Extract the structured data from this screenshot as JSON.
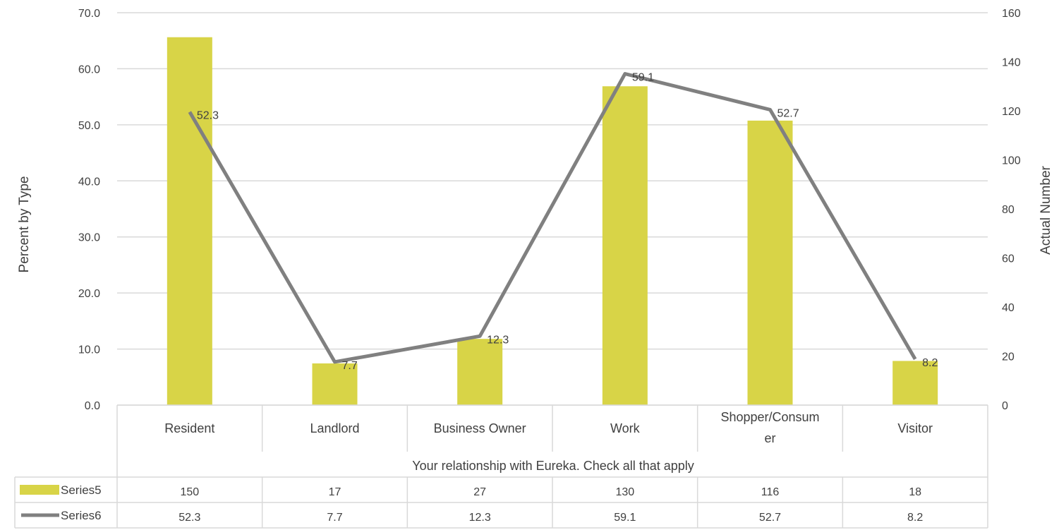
{
  "chart_data": {
    "type": "bar",
    "xlabel": "Your relationship with Eureka.  Check all that apply",
    "ylabel": "Percent  by Type",
    "y2label": "Actual Number",
    "categories": [
      "Resident",
      "Landlord",
      "Business Owner",
      "Work",
      "Shopper/Consum er",
      "Visitor"
    ],
    "ylim": [
      0,
      70
    ],
    "y_ticks": [
      "0.0",
      "10.0",
      "20.0",
      "30.0",
      "40.0",
      "50.0",
      "60.0",
      "70.0"
    ],
    "y2lim": [
      0,
      160
    ],
    "y2_ticks": [
      "0",
      "20",
      "40",
      "60",
      "80",
      "100",
      "120",
      "140",
      "160"
    ],
    "grid": true,
    "series": [
      {
        "name": "Series5",
        "type": "bar",
        "axis": "y2",
        "color": "#d8d447",
        "values": [
          150,
          17,
          27,
          130,
          116,
          18
        ],
        "labels": [
          "150",
          "17",
          "27",
          "130",
          "116",
          "18"
        ]
      },
      {
        "name": "Series6",
        "type": "line",
        "axis": "y",
        "color": "#808080",
        "values": [
          52.3,
          7.7,
          12.3,
          59.1,
          52.7,
          8.2
        ],
        "labels": [
          "52.3",
          "7.7",
          "12.3",
          "59.1",
          "52.7",
          "8.2"
        ]
      }
    ],
    "data_table": true
  }
}
